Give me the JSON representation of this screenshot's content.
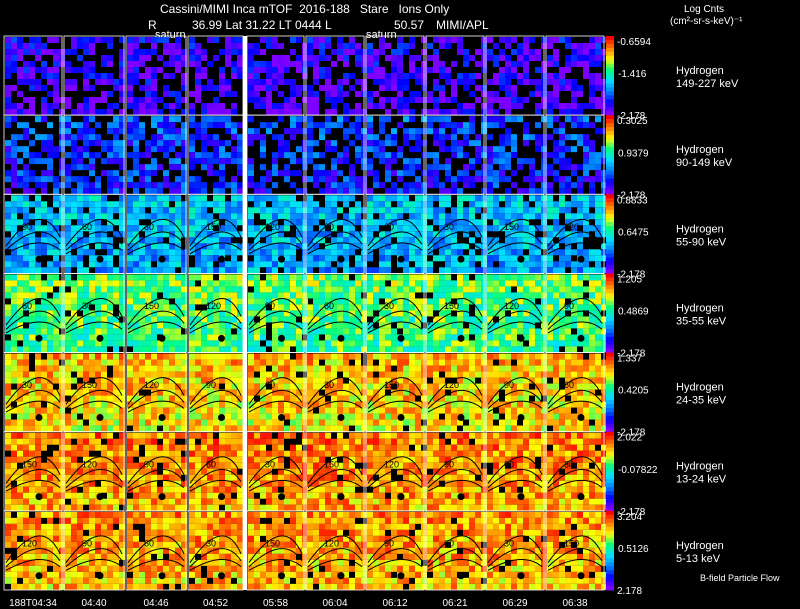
{
  "header": {
    "line1": "Cassini/MIMI Inca mTOF  2016-188   Stare   Ions Only",
    "r_label": "R",
    "line2_values": "36.99 Lat 31.22 LT 0444 L",
    "l_value": "50.57",
    "org": "MIMI/APL",
    "saturn_labels": [
      "saturn",
      "saturn"
    ]
  },
  "legend": {
    "title": "Log Cnts",
    "units": "(cm²-sr-s-keV)⁻¹",
    "footnote": "B-field Particle Flow"
  },
  "chart_data": {
    "type": "heatmap",
    "title": "Cassini/MIMI Inca mTOF 2016-188 Stare Ions Only",
    "time_labels": [
      "188T04:34",
      "04:40",
      "04:46",
      "04:52",
      "05:58",
      "06:04",
      "06:12",
      "06:21",
      "06:29",
      "06:38"
    ],
    "channels": [
      {
        "species": "Hydrogen",
        "energy": "149-227 keV",
        "max": "-0.6594",
        "mid": "-1.416",
        "min": "-2.178",
        "level": 0.1
      },
      {
        "species": "Hydrogen",
        "energy": "90-149 keV",
        "max": "0.3025",
        "mid": "0.9379",
        "min": "-2.178",
        "level": 0.22
      },
      {
        "species": "Hydrogen",
        "energy": "55-90 keV",
        "max": "0.8833",
        "mid": "0.6475",
        "min": "-2.178",
        "level": 0.4
      },
      {
        "species": "Hydrogen",
        "energy": "35-55 keV",
        "max": "1.205",
        "mid": "0.4869",
        "min": "-2.178",
        "level": 0.62
      },
      {
        "species": "Hydrogen",
        "energy": "24-35 keV",
        "max": "1.337",
        "mid": "0.4205",
        "min": "-2.178",
        "level": 0.8
      },
      {
        "species": "Hydrogen",
        "energy": "13-24 keV",
        "max": "2.022",
        "mid": "-0.07822",
        "min": "-2.178",
        "level": 0.86
      },
      {
        "species": "Hydrogen",
        "energy": "5-13 keV",
        "max": "3.204",
        "mid": "0.5126",
        "min": "2.178",
        "level": 0.84
      }
    ],
    "contour_labels": [
      "150",
      "120",
      "90",
      "60",
      "30"
    ],
    "colorbar": [
      "#7f00ff",
      "#0000ff",
      "#0080ff",
      "#00e0ff",
      "#00ff80",
      "#ffff00",
      "#ff8000",
      "#ff0000"
    ]
  }
}
